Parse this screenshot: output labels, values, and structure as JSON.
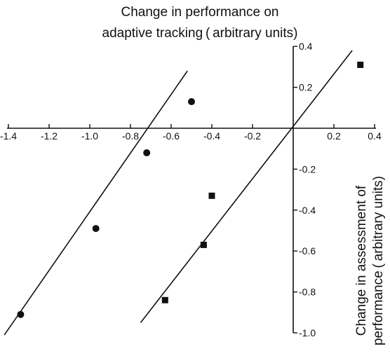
{
  "chart_data": {
    "type": "scatter",
    "title_lines": [
      "Change in performance on",
      "adaptive tracking ( arbitrary units)"
    ],
    "ylabel_lines": [
      "Change in assessment of",
      "performance ( arbitrary units)"
    ],
    "xlim": [
      -1.4,
      0.4
    ],
    "ylim": [
      -1.0,
      0.4
    ],
    "x_ticks": [
      -1.4,
      -1.2,
      -1.0,
      -0.8,
      -0.6,
      -0.4,
      -0.2,
      0.2,
      0.4
    ],
    "x_tick_labels": [
      "-1.4",
      "-1.2",
      "-1.0",
      "-0.8",
      "-0.6",
      "-0.4",
      "-0.2",
      "0.2",
      "0.4"
    ],
    "y_ticks": [
      0.4,
      0.2,
      -0.2,
      -0.4,
      -0.6,
      -0.8,
      -1.0
    ],
    "y_tick_labels": [
      "0.4",
      "0.2",
      "-0.2",
      "-0.4",
      "-0.6",
      "-0.8",
      "-1.0"
    ],
    "series": [
      {
        "marker": "circle",
        "color": "#111111",
        "points": [
          {
            "x": -1.34,
            "y": -0.91
          },
          {
            "x": -0.97,
            "y": -0.49
          },
          {
            "x": -0.72,
            "y": -0.12
          },
          {
            "x": -0.5,
            "y": 0.13
          }
        ],
        "fit_line": {
          "x": [
            -1.42,
            -0.52
          ],
          "y": [
            -1.01,
            0.28
          ]
        }
      },
      {
        "marker": "square",
        "color": "#111111",
        "points": [
          {
            "x": 0.33,
            "y": 0.31
          },
          {
            "x": -0.4,
            "y": -0.33
          },
          {
            "x": -0.44,
            "y": -0.57
          },
          {
            "x": -0.63,
            "y": -0.84
          }
        ],
        "fit_line": {
          "x": [
            -0.75,
            0.29
          ],
          "y": [
            -0.95,
            0.38
          ]
        }
      }
    ]
  }
}
